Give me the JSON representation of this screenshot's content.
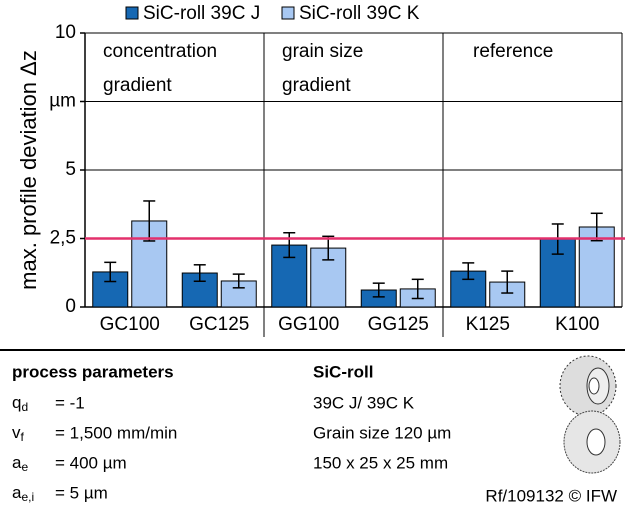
{
  "chart_data": {
    "type": "bar",
    "y_label": "max. profile deviation Δz",
    "categories": [
      "GC100",
      "GC125",
      "GG100",
      "GG125",
      "K125",
      "K100"
    ],
    "series": [
      {
        "name": "SiC-roll 39C J",
        "color": "#1668b3",
        "values": [
          1.28,
          1.24,
          2.26,
          0.62,
          1.31,
          2.48
        ],
        "errors": [
          0.35,
          0.3,
          0.45,
          0.25,
          0.3,
          0.55
        ]
      },
      {
        "name": "SiC-roll 39C K",
        "color": "#a8c8f2",
        "values": [
          3.14,
          0.95,
          2.15,
          0.66,
          0.91,
          2.92
        ],
        "errors": [
          0.73,
          0.25,
          0.43,
          0.35,
          0.4,
          0.5
        ]
      }
    ],
    "regions": [
      {
        "lines": [
          "concentration",
          "gradient"
        ]
      },
      {
        "lines": [
          "grain size",
          "gradient"
        ]
      },
      {
        "lines": [
          "reference"
        ]
      }
    ],
    "reference_line": {
      "value": 2.5,
      "color": "#e3306c"
    },
    "ylim": [
      0,
      10
    ],
    "yticks": [
      0,
      {
        "value": 2.5,
        "label": "2,5"
      },
      5,
      {
        "value": 7.5,
        "label": "µm"
      },
      10
    ],
    "grid": true
  },
  "panel": {
    "left_title": "process parameters",
    "parameters": [
      {
        "symbol": "q",
        "sub": "d",
        "value": "= -1"
      },
      {
        "symbol": "v",
        "sub": "f",
        "value": "= 1,500 mm/min"
      },
      {
        "symbol": "a",
        "sub": "e",
        "value": "= 400 µm"
      },
      {
        "symbol": "a",
        "sub": "e,i",
        "value": "= 5 µm"
      }
    ],
    "right_title": "SiC-roll",
    "right_lines": [
      "39C J/ 39C K",
      "Grain size 120 µm",
      "150 x 25 x 25 mm"
    ],
    "footer": "Rf/109132 © IFW"
  }
}
